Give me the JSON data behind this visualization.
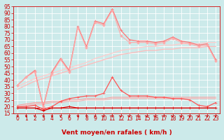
{
  "x": [
    0,
    1,
    2,
    3,
    4,
    5,
    6,
    7,
    8,
    9,
    10,
    11,
    12,
    13,
    14,
    15,
    16,
    17,
    18,
    19,
    20,
    21,
    22,
    23
  ],
  "series": [
    {
      "name": "max_gust_line",
      "color": "#ff7777",
      "alpha": 1.0,
      "linewidth": 0.9,
      "marker": "+",
      "markersize": 3.5,
      "values": [
        36,
        42,
        47,
        20,
        46,
        56,
        47,
        80,
        65,
        84,
        82,
        93,
        77,
        70,
        69,
        69,
        68,
        69,
        72,
        69,
        68,
        66,
        67,
        55
      ]
    },
    {
      "name": "upper_envelope",
      "color": "#ffaaaa",
      "alpha": 1.0,
      "linewidth": 0.8,
      "marker": "D",
      "markersize": 1.8,
      "values": [
        36,
        42,
        46,
        19,
        45,
        55,
        46,
        79,
        64,
        83,
        81,
        92,
        73,
        68,
        68,
        68,
        67,
        68,
        71,
        68,
        67,
        65,
        66,
        54
      ]
    },
    {
      "name": "trend_high",
      "color": "#ffcccc",
      "alpha": 1.0,
      "linewidth": 0.9,
      "marker": null,
      "markersize": 0,
      "values": [
        35,
        38,
        41,
        43,
        45,
        47,
        49,
        51,
        53,
        56,
        58,
        60,
        62,
        63,
        64,
        65,
        65,
        66,
        66,
        67,
        67,
        67,
        68,
        68
      ]
    },
    {
      "name": "trend_mid",
      "color": "#ffbbbb",
      "alpha": 1.0,
      "linewidth": 0.9,
      "marker": null,
      "markersize": 0,
      "values": [
        33,
        36,
        39,
        41,
        43,
        45,
        47,
        49,
        51,
        53,
        55,
        57,
        59,
        60,
        61,
        62,
        62,
        63,
        63,
        64,
        64,
        64,
        65,
        65
      ]
    },
    {
      "name": "avg_wind_high",
      "color": "#ff5555",
      "alpha": 1.0,
      "linewidth": 0.9,
      "marker": "+",
      "markersize": 3.5,
      "values": [
        20,
        20,
        21,
        18,
        20,
        24,
        26,
        27,
        28,
        28,
        30,
        42,
        32,
        28,
        28,
        28,
        27,
        27,
        26,
        26,
        25,
        21,
        20,
        23
      ]
    },
    {
      "name": "trend_low1",
      "color": "#ff9999",
      "alpha": 1.0,
      "linewidth": 0.7,
      "marker": null,
      "markersize": 0,
      "values": [
        21,
        22,
        23,
        23,
        24,
        24,
        25,
        25,
        26,
        26,
        26,
        27,
        27,
        27,
        27,
        27,
        27,
        27,
        27,
        27,
        27,
        27,
        27,
        27
      ]
    },
    {
      "name": "trend_low2",
      "color": "#ffaaaa",
      "alpha": 1.0,
      "linewidth": 0.7,
      "marker": null,
      "markersize": 0,
      "values": [
        20,
        21,
        22,
        22,
        23,
        23,
        24,
        24,
        25,
        25,
        25,
        26,
        26,
        26,
        26,
        26,
        26,
        26,
        26,
        26,
        26,
        26,
        26,
        26
      ]
    },
    {
      "name": "avg_wind_line",
      "color": "#dd0000",
      "alpha": 1.0,
      "linewidth": 0.9,
      "marker": "+",
      "markersize": 3.5,
      "values": [
        19,
        19,
        19,
        17,
        19,
        19,
        20,
        19,
        19,
        19,
        19,
        19,
        19,
        19,
        19,
        19,
        19,
        19,
        19,
        19,
        19,
        19,
        19,
        19
      ]
    },
    {
      "name": "base_line",
      "color": "#cc2222",
      "alpha": 1.0,
      "linewidth": 0.7,
      "marker": null,
      "markersize": 0,
      "values": [
        19,
        19,
        19,
        19,
        19,
        19,
        19,
        19,
        19,
        19,
        19,
        19,
        19,
        19,
        19,
        19,
        19,
        19,
        19,
        19,
        19,
        19,
        19,
        19
      ]
    }
  ],
  "ylim": [
    15,
    95
  ],
  "yticks": [
    15,
    20,
    25,
    30,
    35,
    40,
    45,
    50,
    55,
    60,
    65,
    70,
    75,
    80,
    85,
    90,
    95
  ],
  "xlim": [
    -0.5,
    23.5
  ],
  "xticks": [
    0,
    1,
    2,
    3,
    4,
    5,
    6,
    7,
    8,
    9,
    10,
    11,
    12,
    13,
    14,
    15,
    16,
    17,
    18,
    19,
    20,
    21,
    22,
    23
  ],
  "xlabel": "Vent moyen/en rafales ( km/h )",
  "background_color": "#cceaea",
  "grid_color": "#aadddd",
  "text_color": "#cc0000",
  "spine_color": "#cc0000",
  "tick_fontsize": 5.5,
  "xlabel_fontsize": 6.5
}
